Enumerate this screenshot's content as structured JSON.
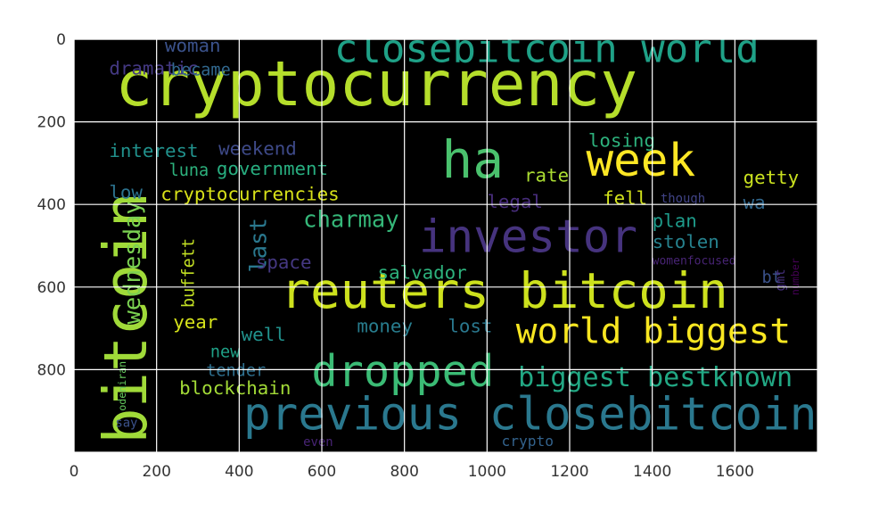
{
  "chart_data": {
    "type": "wordcloud",
    "title": "",
    "xlabel": "",
    "ylabel": "",
    "xlim": [
      0,
      1800
    ],
    "ylim": [
      1000,
      0
    ],
    "x_ticks": [
      0,
      200,
      400,
      600,
      800,
      1000,
      1200,
      1400,
      1600
    ],
    "y_ticks": [
      0,
      200,
      400,
      600,
      800
    ],
    "grid": true,
    "background": "#000000",
    "grid_color": "#ffffff",
    "words": [
      {
        "text": "cryptocurrency",
        "x": 100,
        "y": 160,
        "size": 150,
        "color": "#b5de2b",
        "rotate": 0
      },
      {
        "text": "closebitcoin world",
        "x": 630,
        "y": 55,
        "size": 95,
        "color": "#1fa187",
        "rotate": 0
      },
      {
        "text": "bitcoin",
        "x": 175,
        "y": 980,
        "size": 145,
        "color": "#a0da39",
        "rotate": -90
      },
      {
        "text": "ha",
        "x": 890,
        "y": 335,
        "size": 125,
        "color": "#4ac16d",
        "rotate": 0
      },
      {
        "text": "week",
        "x": 1240,
        "y": 330,
        "size": 110,
        "color": "#fde725",
        "rotate": 0
      },
      {
        "text": "investor",
        "x": 835,
        "y": 515,
        "size": 110,
        "color": "#46337e",
        "rotate": 0
      },
      {
        "text": "reuters bitcoin",
        "x": 500,
        "y": 650,
        "size": 120,
        "color": "#cde11d",
        "rotate": 0
      },
      {
        "text": "world biggest",
        "x": 1070,
        "y": 735,
        "size": 85,
        "color": "#f8e621",
        "rotate": 0
      },
      {
        "text": "dropped",
        "x": 575,
        "y": 840,
        "size": 105,
        "color": "#3bbb75",
        "rotate": 0
      },
      {
        "text": "biggest bestknown",
        "x": 1075,
        "y": 840,
        "size": 65,
        "color": "#22a884",
        "rotate": 0
      },
      {
        "text": "previous closebitcoin",
        "x": 410,
        "y": 945,
        "size": 110,
        "color": "#2a788e",
        "rotate": 0
      },
      {
        "text": "woman",
        "x": 220,
        "y": 30,
        "size": 45,
        "color": "#3b528b",
        "rotate": 0
      },
      {
        "text": "dramatic",
        "x": 85,
        "y": 85,
        "size": 45,
        "color": "#443983",
        "rotate": 0
      },
      {
        "text": "became",
        "x": 235,
        "y": 88,
        "size": 40,
        "color": "#31688e",
        "rotate": 0
      },
      {
        "text": "interest",
        "x": 85,
        "y": 285,
        "size": 45,
        "color": "#21918c",
        "rotate": 0
      },
      {
        "text": "weekend",
        "x": 350,
        "y": 280,
        "size": 45,
        "color": "#3e4a89",
        "rotate": 0
      },
      {
        "text": "luna",
        "x": 230,
        "y": 330,
        "size": 40,
        "color": "#2db27d",
        "rotate": 0
      },
      {
        "text": "government",
        "x": 345,
        "y": 328,
        "size": 45,
        "color": "#28ae80",
        "rotate": 0
      },
      {
        "text": "losing",
        "x": 1245,
        "y": 260,
        "size": 45,
        "color": "#2db27d",
        "rotate": 0
      },
      {
        "text": "rate",
        "x": 1090,
        "y": 345,
        "size": 45,
        "color": "#aadc32",
        "rotate": 0
      },
      {
        "text": "getty",
        "x": 1620,
        "y": 350,
        "size": 45,
        "color": "#cae11f",
        "rotate": 0
      },
      {
        "text": "low",
        "x": 85,
        "y": 385,
        "size": 45,
        "color": "#2c728e",
        "rotate": 0
      },
      {
        "text": "cryptocurrencies",
        "x": 210,
        "y": 390,
        "size": 45,
        "color": "#d8e219",
        "rotate": 0
      },
      {
        "text": "legal",
        "x": 1000,
        "y": 408,
        "size": 45,
        "color": "#472d7b",
        "rotate": 0
      },
      {
        "text": "fell",
        "x": 1280,
        "y": 400,
        "size": 45,
        "color": "#d2e21b",
        "rotate": 0
      },
      {
        "text": "though",
        "x": 1420,
        "y": 395,
        "size": 30,
        "color": "#414487",
        "rotate": 0
      },
      {
        "text": "wa",
        "x": 1620,
        "y": 410,
        "size": 45,
        "color": "#31688e",
        "rotate": 0
      },
      {
        "text": "wednesday",
        "x": 160,
        "y": 690,
        "size": 55,
        "color": "#7ad151",
        "rotate": -90
      },
      {
        "text": "charmay",
        "x": 555,
        "y": 455,
        "size": 55,
        "color": "#35b779",
        "rotate": 0
      },
      {
        "text": "last",
        "x": 465,
        "y": 565,
        "size": 55,
        "color": "#2a788e",
        "rotate": -90
      },
      {
        "text": "plan",
        "x": 1400,
        "y": 455,
        "size": 45,
        "color": "#1e9b8a",
        "rotate": 0
      },
      {
        "text": "stolen",
        "x": 1400,
        "y": 505,
        "size": 45,
        "color": "#26828e",
        "rotate": 0
      },
      {
        "text": "womenfocused",
        "x": 1400,
        "y": 545,
        "size": 28,
        "color": "#482475",
        "rotate": 0
      },
      {
        "text": "bt",
        "x": 1665,
        "y": 590,
        "size": 40,
        "color": "#3b528b",
        "rotate": 0
      },
      {
        "text": "number",
        "x": 1755,
        "y": 620,
        "size": 25,
        "color": "#440154",
        "rotate": -90
      },
      {
        "text": "gmt",
        "x": 1720,
        "y": 610,
        "size": 30,
        "color": "#46307e",
        "rotate": -90
      },
      {
        "text": "space",
        "x": 440,
        "y": 555,
        "size": 45,
        "color": "#453882",
        "rotate": 0
      },
      {
        "text": "salvador",
        "x": 735,
        "y": 580,
        "size": 45,
        "color": "#2db27d",
        "rotate": 0
      },
      {
        "text": "buffett",
        "x": 290,
        "y": 650,
        "size": 40,
        "color": "#c2df23",
        "rotate": -90
      },
      {
        "text": "year",
        "x": 240,
        "y": 700,
        "size": 45,
        "color": "#d5e21a",
        "rotate": 0
      },
      {
        "text": "well",
        "x": 405,
        "y": 730,
        "size": 45,
        "color": "#21918c",
        "rotate": 0
      },
      {
        "text": "money",
        "x": 685,
        "y": 710,
        "size": 45,
        "color": "#287d8e",
        "rotate": 0
      },
      {
        "text": "lost",
        "x": 905,
        "y": 710,
        "size": 45,
        "color": "#2a788e",
        "rotate": 0
      },
      {
        "text": "new",
        "x": 330,
        "y": 770,
        "size": 40,
        "color": "#1fa187",
        "rotate": 0
      },
      {
        "text": "tender",
        "x": 320,
        "y": 815,
        "size": 40,
        "color": "#2e6f8e",
        "rotate": 0
      },
      {
        "text": "blockchain",
        "x": 255,
        "y": 860,
        "size": 45,
        "color": "#a2da37",
        "rotate": 0
      },
      {
        "text": "odeniran",
        "x": 125,
        "y": 900,
        "size": 25,
        "color": "#65cb5e",
        "rotate": -90
      },
      {
        "text": "say",
        "x": 100,
        "y": 938,
        "size": 30,
        "color": "#3b528b",
        "rotate": 0
      },
      {
        "text": "even",
        "x": 555,
        "y": 985,
        "size": 30,
        "color": "#482475",
        "rotate": 0
      },
      {
        "text": "crypto",
        "x": 1035,
        "y": 985,
        "size": 35,
        "color": "#33638d",
        "rotate": 0
      }
    ]
  }
}
